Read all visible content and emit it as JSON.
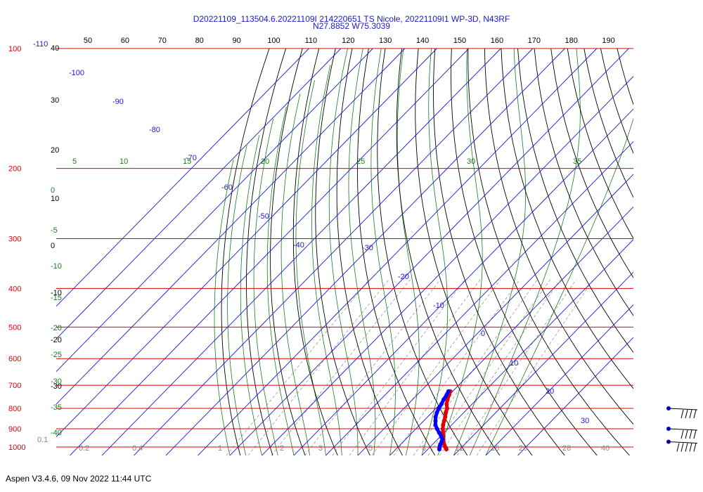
{
  "header": {
    "title_line1": "D20221109_113504.6.20221109I 214220651 TS Nicole, 20221109I1 WP-3D, N43RF",
    "title_line2": "N27.8852 W75.3039"
  },
  "footer": {
    "text": "Aspen V3.4.6, 09 Nov 2022  11:44 UTC"
  },
  "chart_data": {
    "type": "line",
    "title": "D20221109_113504.6.20221109I 214220651 TS Nicole, 20221109I1 WP-3D, N43RF",
    "subtitle": "N27.8852 W75.3039",
    "pressure_levels": [
      100,
      200,
      300,
      400,
      500,
      600,
      700,
      800,
      900,
      1000
    ],
    "pressure_labels": [
      "100",
      "200",
      "300",
      "400",
      "500",
      "600",
      "700",
      "800",
      "900",
      "1000"
    ],
    "top_axis_ticks": [
      "50",
      "60",
      "70",
      "80",
      "90",
      "100",
      "110",
      "120",
      "130",
      "140",
      "150",
      "160",
      "170",
      "180",
      "190"
    ],
    "top_left_labels": [
      "-110",
      "40"
    ],
    "left_black_ticks": [
      "30",
      "20",
      "10",
      "0",
      "-10",
      "-20",
      "-30"
    ],
    "temperature_isotherm_labels": [
      "-100",
      "-90",
      "-80",
      "-70",
      "-60",
      "-50",
      "-40",
      "-30",
      "-20",
      "-10",
      "0",
      "10",
      "20",
      "30"
    ],
    "green_top_labels": [
      "5",
      "10",
      "15",
      "20",
      "25",
      "30",
      "35"
    ],
    "green_left_labels": [
      "0",
      "-5",
      "-10",
      "-15",
      "-20",
      "-25",
      "-30",
      "-35",
      "-40"
    ],
    "mixing_ratio_labels": [
      "0.1",
      "0.2",
      "0.4",
      "1",
      "2",
      "3",
      "5",
      "8",
      "12",
      "16",
      "20",
      "28",
      "40"
    ],
    "series": [
      {
        "name": "",
        "color": "#e00000",
        "points": [
          {
            "p": 1013,
            "t": 25.8
          },
          {
            "p": 1005,
            "t": 25.2
          },
          {
            "p": 995,
            "t": 24.3
          },
          {
            "p": 985,
            "t": 23.6
          },
          {
            "p": 970,
            "t": 22.6
          },
          {
            "p": 955,
            "t": 21.7
          },
          {
            "p": 940,
            "t": 20.9
          },
          {
            "p": 920,
            "t": 19.6
          },
          {
            "p": 900,
            "t": 18.4
          },
          {
            "p": 880,
            "t": 17.3
          },
          {
            "p": 860,
            "t": 16.4
          },
          {
            "p": 840,
            "t": 15.5
          },
          {
            "p": 820,
            "t": 14.4
          },
          {
            "p": 800,
            "t": 13.5
          },
          {
            "p": 780,
            "t": 12.0
          },
          {
            "p": 760,
            "t": 10.9
          },
          {
            "p": 740,
            "t": 10.0
          },
          {
            "p": 725,
            "t": 9.3
          }
        ]
      },
      {
        "name": "",
        "color": "#0000ff",
        "points": [
          {
            "p": 1013,
            "t": 23.6
          },
          {
            "p": 1005,
            "t": 23.2
          },
          {
            "p": 995,
            "t": 22.8
          },
          {
            "p": 985,
            "t": 22.4
          },
          {
            "p": 970,
            "t": 22.0
          },
          {
            "p": 955,
            "t": 21.4
          },
          {
            "p": 940,
            "t": 20.2
          },
          {
            "p": 920,
            "t": 18.4
          },
          {
            "p": 900,
            "t": 16.6
          },
          {
            "p": 880,
            "t": 14.9
          },
          {
            "p": 860,
            "t": 13.7
          },
          {
            "p": 840,
            "t": 12.5
          },
          {
            "p": 820,
            "t": 11.6
          },
          {
            "p": 800,
            "t": 10.9
          },
          {
            "p": 780,
            "t": 10.4
          },
          {
            "p": 760,
            "t": 9.7
          },
          {
            "p": 740,
            "t": 9.2
          },
          {
            "p": 725,
            "t": 8.7
          }
        ]
      }
    ],
    "wind_barbs": [
      {
        "p": 800,
        "speed_kt": 40
      },
      {
        "p": 900,
        "speed_kt": 40
      },
      {
        "p": 970,
        "speed_kt": 50
      }
    ],
    "colors": {
      "isobar": "#dd0000",
      "isotherm": "#1a1acc",
      "dry_adiabat": "#000000",
      "moist_adiabat": "#1e7a1e",
      "mixing_ratio": "#999999",
      "title": "#1a1acc"
    }
  }
}
